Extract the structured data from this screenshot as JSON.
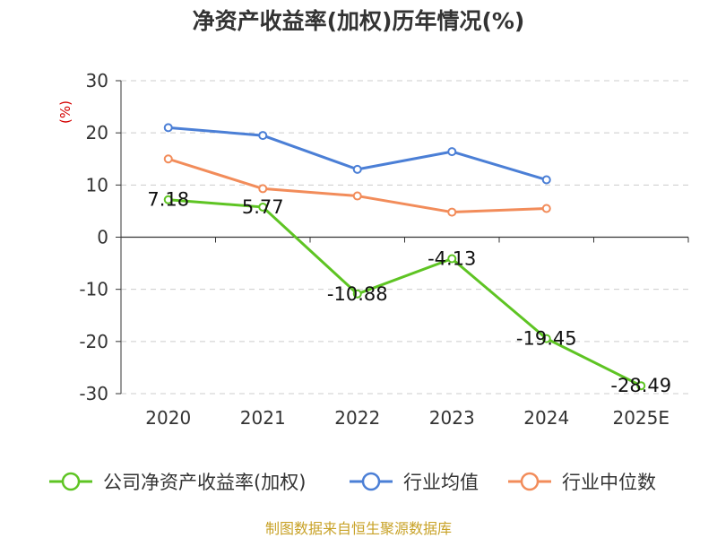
{
  "chart_data": {
    "type": "line",
    "title": "净资产收益率(加权)历年情况(%)",
    "ylabel": "(%)",
    "xlabel": "",
    "categories": [
      "2020",
      "2021",
      "2022",
      "2023",
      "2024",
      "2025E"
    ],
    "yticks": [
      "30",
      "20",
      "10",
      "0",
      "-10",
      "-20",
      "-30"
    ],
    "ylim": [
      -30,
      30
    ],
    "grid": true,
    "legend_position": "bottom",
    "series": [
      {
        "name": "公司净资产收益率(加权)",
        "color": "#5ec423",
        "values": [
          7.18,
          5.77,
          -10.88,
          -4.13,
          -19.45,
          -28.49
        ],
        "labels": [
          "7.18",
          "5.77",
          "-10.88",
          "-4.13",
          "-19.45",
          "-28.49"
        ]
      },
      {
        "name": "行业均值",
        "color": "#4b7fd6",
        "values": [
          21.0,
          19.5,
          13.0,
          16.4,
          11.0,
          null
        ]
      },
      {
        "name": "行业中位数",
        "color": "#f28c5a",
        "values": [
          15.0,
          9.3,
          7.9,
          4.8,
          5.5,
          null
        ]
      }
    ],
    "source": "制图数据来自恒生聚源数据库"
  }
}
